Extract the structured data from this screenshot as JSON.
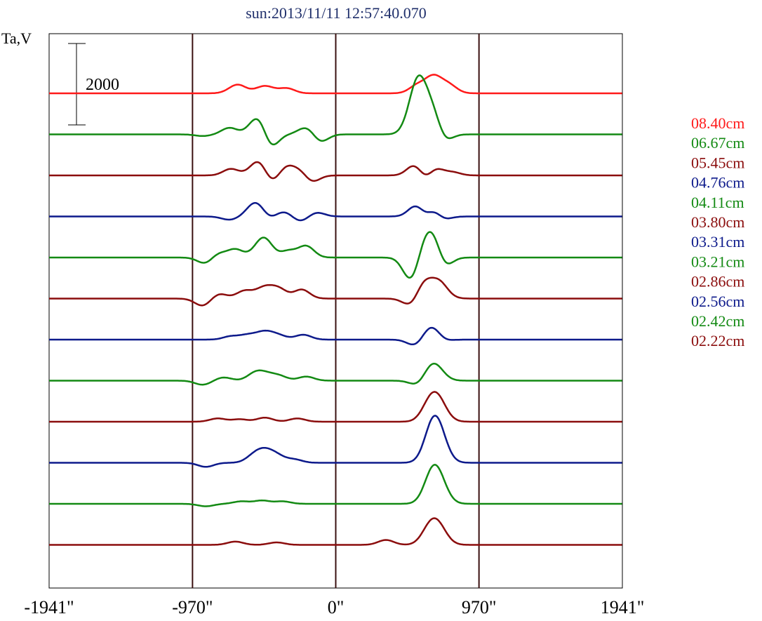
{
  "chart_data": {
    "type": "line",
    "title": "sun:2013/11/11 12:57:40.070",
    "ylabel": "Ta,V",
    "x_ticks": [
      "-1941\"",
      "-970\"",
      "0\"",
      "970\"",
      "1941\""
    ],
    "x_tick_values": [
      -1941,
      -970,
      0,
      970,
      1941
    ],
    "xlim": [
      -1941,
      1941
    ],
    "vertical_lines": [
      -970,
      0,
      970
    ],
    "scale_bar": {
      "label": "2000",
      "value": 2000
    },
    "grid": false,
    "legend_position": "right",
    "series": [
      {
        "name": "08.40cm",
        "color": "#ff1a1a",
        "peaks": [
          [
            -680,
            320,
            120
          ],
          [
            -650,
            300,
            100
          ],
          [
            -480,
            350,
            180
          ],
          [
            -330,
            300,
            120
          ],
          [
            555,
            310,
            200
          ],
          [
            660,
            300,
            380
          ],
          [
            760,
            320,
            220
          ]
        ]
      },
      {
        "name": "06.67cm",
        "color": "#138a13",
        "peaks": [
          [
            -900,
            300,
            -40
          ],
          [
            -720,
            300,
            160
          ],
          [
            -510,
            350,
            560
          ],
          [
            -450,
            300,
            -520
          ],
          [
            -190,
            330,
            200
          ],
          [
            -110,
            300,
            -220
          ],
          [
            560,
            330,
            -120
          ],
          [
            560,
            340,
            1500
          ],
          [
            670,
            300,
            560
          ],
          [
            720,
            300,
            -300
          ]
        ]
      },
      {
        "name": "05.45cm",
        "color": "#8b0d0d",
        "peaks": [
          [
            -710,
            300,
            160
          ],
          [
            -505,
            350,
            480
          ],
          [
            -450,
            300,
            -360
          ],
          [
            -330,
            300,
            220
          ],
          [
            -230,
            300,
            160
          ],
          [
            -170,
            300,
            -200
          ],
          [
            540,
            300,
            300
          ],
          [
            610,
            300,
            -240
          ],
          [
            665,
            300,
            240
          ],
          [
            790,
            300,
            80
          ]
        ]
      },
      {
        "name": "04.76cm",
        "color": "#0d1a8b",
        "peaks": [
          [
            -720,
            300,
            -80
          ],
          [
            -560,
            300,
            120
          ],
          [
            -510,
            350,
            360
          ],
          [
            -470,
            300,
            -240
          ],
          [
            -350,
            300,
            120
          ],
          [
            -240,
            300,
            -120
          ],
          [
            -130,
            300,
            100
          ],
          [
            550,
            300,
            320
          ],
          [
            610,
            300,
            -200
          ],
          [
            665,
            300,
            300
          ],
          [
            710,
            300,
            -160
          ]
        ]
      },
      {
        "name": "04.11cm",
        "color": "#138a13",
        "peaks": [
          [
            -880,
            300,
            -160
          ],
          [
            -800,
            300,
            120
          ],
          [
            -680,
            300,
            200
          ],
          [
            -480,
            350,
            560
          ],
          [
            -430,
            300,
            -120
          ],
          [
            -320,
            300,
            160
          ],
          [
            -200,
            300,
            280
          ],
          [
            510,
            300,
            -560
          ],
          [
            610,
            300,
            440
          ],
          [
            680,
            300,
            560
          ],
          [
            720,
            300,
            -440
          ]
        ]
      },
      {
        "name": "03.80cm",
        "color": "#8b0d0d",
        "peaks": [
          [
            -900,
            300,
            -180
          ],
          [
            -790,
            300,
            120
          ],
          [
            -620,
            300,
            180
          ],
          [
            -480,
            350,
            280
          ],
          [
            -380,
            300,
            200
          ],
          [
            -230,
            300,
            220
          ],
          [
            510,
            300,
            -180
          ],
          [
            600,
            300,
            380
          ],
          [
            650,
            300,
            -260
          ],
          [
            680,
            350,
            600
          ]
        ]
      },
      {
        "name": "03.31cm",
        "color": "#0d1a8b",
        "peaks": [
          [
            -710,
            300,
            80
          ],
          [
            -600,
            300,
            100
          ],
          [
            -480,
            350,
            200
          ],
          [
            -380,
            300,
            80
          ],
          [
            -220,
            300,
            120
          ],
          [
            540,
            300,
            -160
          ],
          [
            660,
            350,
            400
          ],
          [
            710,
            300,
            -160
          ]
        ]
      },
      {
        "name": "03.21cm",
        "color": "#138a13",
        "peaks": [
          [
            -900,
            300,
            -100
          ],
          [
            -760,
            300,
            80
          ],
          [
            -550,
            300,
            140
          ],
          [
            -480,
            350,
            160
          ],
          [
            -380,
            300,
            100
          ],
          [
            -200,
            300,
            100
          ],
          [
            560,
            300,
            -140
          ],
          [
            660,
            350,
            440
          ]
        ]
      },
      {
        "name": "02.86cm",
        "color": "#8b0d0d",
        "peaks": [
          [
            -800,
            300,
            80
          ],
          [
            -650,
            300,
            60
          ],
          [
            -480,
            300,
            100
          ],
          [
            -260,
            300,
            80
          ],
          [
            620,
            300,
            160
          ],
          [
            680,
            350,
            640
          ]
        ]
      },
      {
        "name": "02.56cm",
        "color": "#0d1a8b",
        "peaks": [
          [
            -880,
            300,
            -100
          ],
          [
            -560,
            300,
            120
          ],
          [
            -480,
            350,
            300
          ],
          [
            -390,
            300,
            120
          ],
          [
            -280,
            300,
            80
          ],
          [
            640,
            300,
            200
          ],
          [
            680,
            350,
            1000
          ]
        ]
      },
      {
        "name": "02.42cm",
        "color": "#138a13",
        "peaks": [
          [
            -880,
            300,
            -60
          ],
          [
            -640,
            300,
            60
          ],
          [
            -500,
            300,
            80
          ],
          [
            -360,
            300,
            60
          ],
          [
            640,
            300,
            200
          ],
          [
            680,
            350,
            800
          ]
        ]
      },
      {
        "name": "02.22cm",
        "color": "#8b0d0d",
        "peaks": [
          [
            -680,
            300,
            80
          ],
          [
            -400,
            300,
            60
          ],
          [
            340,
            300,
            120
          ],
          [
            620,
            300,
            160
          ],
          [
            680,
            350,
            560
          ]
        ]
      }
    ]
  }
}
